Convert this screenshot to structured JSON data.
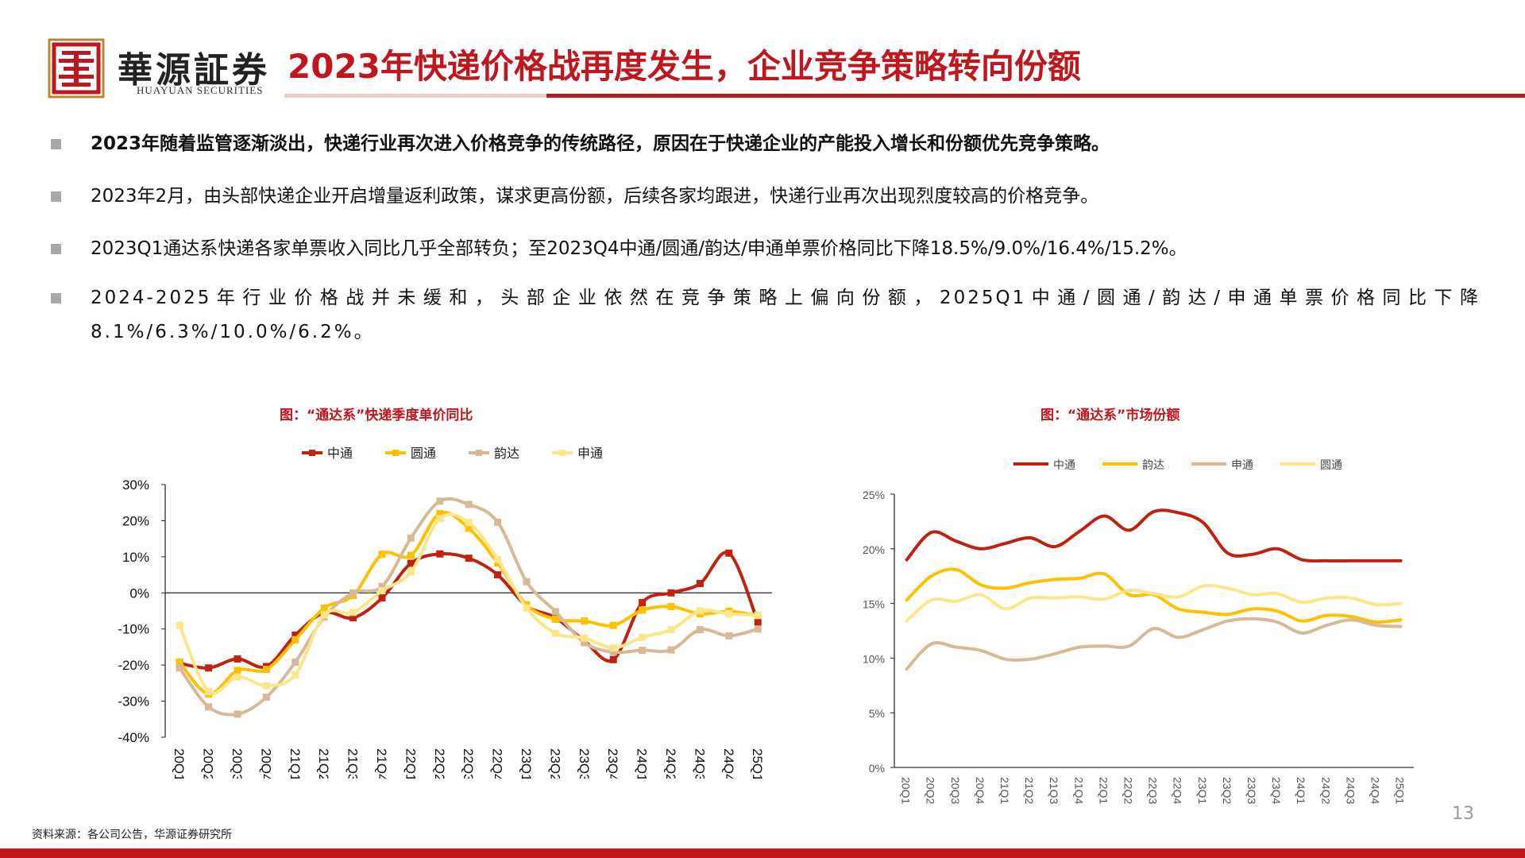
{
  "header": {
    "brand_cn": "華源証券",
    "brand_en": "HUAYUAN SECURITIES",
    "title": "2023年快递价格战再度发生，企业竞争策略转向份额",
    "accent_color": "#c0161d"
  },
  "bullets": [
    "2023年随着监管逐渐淡出，快递行业再次进入价格竞争的传统路径，原因在于快递企业的产能投入增长和份额优先竞争策略。",
    "2023年2月，由头部快递企业开启增量返利政策，谋求更高份额，后续各家均跟进，快递行业再次出现烈度较高的价格竞争。",
    "2023Q1通达系快递各家单票收入同比几乎全部转负；至2023Q4中通/圆通/韵达/申通单票价格同比下降18.5%/9.0%/16.4%/15.2%。",
    "2024-2025年行业价格战并未缓和，头部企业依然在竞争策略上偏向份额，2025Q1中通/圆通/韵达/申通单票价格同比下降8.1%/6.3%/10.0%/6.2%。"
  ],
  "footer": {
    "source": "资料来源：各公司公告，华源证券研究所",
    "page_number": "13"
  },
  "chart_data": [
    {
      "type": "line",
      "title": "图：“通达系”快递季度单价同比",
      "xlabel": "",
      "ylabel": "",
      "ylim": [
        -40,
        30
      ],
      "yticks": [
        "30%",
        "20%",
        "10%",
        "0%",
        "-10%",
        "-20%",
        "-30%",
        "-40%"
      ],
      "legend_position": "top",
      "categories": [
        "20Q1",
        "20Q2",
        "20Q3",
        "20Q4",
        "21Q1",
        "21Q2",
        "21Q3",
        "21Q4",
        "22Q1",
        "22Q2",
        "22Q3",
        "22Q4",
        "23Q1",
        "23Q2",
        "23Q3",
        "23Q4",
        "24Q1",
        "24Q2",
        "24Q3",
        "24Q4",
        "25Q1"
      ],
      "series": [
        {
          "name": "中通",
          "color": "#c0220f",
          "values": [
            -19.5,
            -20.8,
            -18.3,
            -20.4,
            -11.7,
            -5.5,
            -6.9,
            -1.4,
            8.2,
            10.8,
            9.6,
            5.0,
            -3.6,
            -6.9,
            -13.3,
            -18.5,
            -2.7,
            0.0,
            2.6,
            11.0,
            -8.1
          ]
        },
        {
          "name": "圆通",
          "color": "#ffc000",
          "values": [
            -19.2,
            -28.0,
            -21.5,
            -21.2,
            -13.0,
            -4.2,
            -0.7,
            10.7,
            10.4,
            22.0,
            17.9,
            8.3,
            -3.3,
            -7.3,
            -7.8,
            -9.0,
            -4.8,
            -3.8,
            -5.8,
            -5.1,
            -6.3
          ]
        },
        {
          "name": "韵达",
          "color": "#d6b996",
          "values": [
            -20.8,
            -31.6,
            -33.6,
            -28.9,
            -19.2,
            -6.7,
            0.0,
            1.8,
            15.2,
            25.4,
            24.5,
            19.6,
            3.1,
            -5.2,
            -13.8,
            -16.4,
            -15.9,
            -15.8,
            -10.2,
            -11.9,
            -10.0
          ]
        },
        {
          "name": "申通",
          "color": "#fbe78a",
          "values": [
            -9.0,
            -27.3,
            -23.3,
            -25.7,
            -22.7,
            -6.1,
            -5.4,
            0.6,
            5.8,
            20.6,
            19.5,
            9.3,
            -4.2,
            -11.2,
            -12.5,
            -15.2,
            -12.3,
            -10.2,
            -5.0,
            -5.8,
            -6.2
          ]
        }
      ]
    },
    {
      "type": "line",
      "title": "图：“通达系”市场份额",
      "xlabel": "",
      "ylabel": "",
      "ylim": [
        0,
        25
      ],
      "yticks": [
        "25%",
        "20%",
        "15%",
        "10%",
        "5%",
        "0%"
      ],
      "legend_position": "top",
      "categories": [
        "20Q1",
        "20Q2",
        "20Q3",
        "20Q4",
        "21Q1",
        "21Q2",
        "21Q3",
        "21Q4",
        "22Q1",
        "22Q2",
        "22Q3",
        "22Q4",
        "23Q1",
        "23Q2",
        "23Q3",
        "23Q4",
        "24Q1",
        "24Q2",
        "24Q3",
        "24Q4",
        "25Q1"
      ],
      "series": [
        {
          "name": "中通",
          "color": "#c0220f",
          "values": [
            19.0,
            21.5,
            20.7,
            20.0,
            20.5,
            21.0,
            20.2,
            21.6,
            23.0,
            21.7,
            23.4,
            23.3,
            22.4,
            19.6,
            19.5,
            20.0,
            19.0,
            18.9,
            18.9,
            18.9,
            18.9
          ]
        },
        {
          "name": "韵达",
          "color": "#ffc000",
          "values": [
            15.3,
            17.5,
            18.1,
            16.7,
            16.4,
            16.9,
            17.2,
            17.3,
            17.7,
            15.8,
            15.8,
            14.5,
            14.2,
            14.0,
            14.5,
            14.3,
            13.4,
            13.9,
            13.8,
            13.3,
            13.5
          ]
        },
        {
          "name": "申通",
          "color": "#d6b996",
          "values": [
            9.0,
            11.3,
            11.0,
            10.7,
            9.9,
            9.9,
            10.4,
            11.0,
            11.1,
            11.1,
            12.7,
            11.9,
            12.6,
            13.4,
            13.6,
            13.3,
            12.3,
            13.0,
            13.5,
            13.0,
            12.9
          ]
        },
        {
          "name": "圆通",
          "color": "#fbe78a",
          "values": [
            13.4,
            15.3,
            15.2,
            15.8,
            14.5,
            15.5,
            15.5,
            15.6,
            15.4,
            16.2,
            15.9,
            15.6,
            16.6,
            16.4,
            15.8,
            15.9,
            15.1,
            15.5,
            15.5,
            14.9,
            15.0
          ]
        }
      ]
    }
  ]
}
